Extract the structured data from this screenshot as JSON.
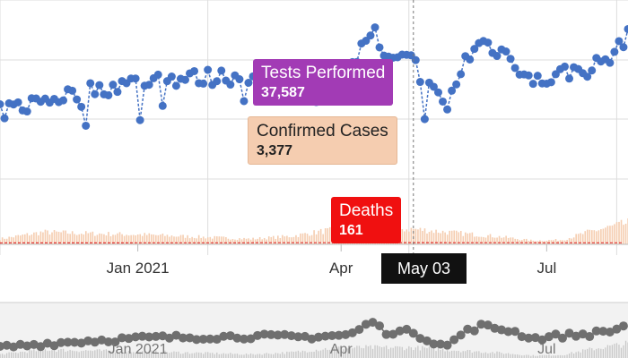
{
  "chart_data": {
    "type": "bar",
    "series": [
      {
        "name": "Tests Performed",
        "color": "#4472c4",
        "render": "line-dots",
        "x_unit": "date",
        "anchors": [
          [
            "2020-11-01",
            27000
          ],
          [
            "2020-11-20",
            29500
          ],
          [
            "2020-12-10",
            31500
          ],
          [
            "2021-01-05",
            33500
          ],
          [
            "2021-01-25",
            34000
          ],
          [
            "2021-02-20",
            34500
          ],
          [
            "2021-03-15",
            34000
          ],
          [
            "2021-04-05",
            35500
          ],
          [
            "2021-04-15",
            44500
          ],
          [
            "2021-04-20",
            37500
          ],
          [
            "2021-05-03",
            37587
          ],
          [
            "2021-05-08",
            33000
          ],
          [
            "2021-05-18",
            28000
          ],
          [
            "2021-05-25",
            37000
          ],
          [
            "2021-06-02",
            41500
          ],
          [
            "2021-06-15",
            38500
          ],
          [
            "2021-06-25",
            33000
          ],
          [
            "2021-07-08",
            35000
          ],
          [
            "2021-07-20",
            36000
          ],
          [
            "2021-08-01",
            39000
          ],
          [
            "2021-08-06",
            44000
          ]
        ]
      },
      {
        "name": "Confirmed Cases",
        "color": "#f5cdb0",
        "render": "bars",
        "x_unit": "date",
        "anchors": [
          [
            "2020-11-01",
            1200
          ],
          [
            "2020-11-20",
            2700
          ],
          [
            "2020-12-10",
            2400
          ],
          [
            "2021-01-05",
            2100
          ],
          [
            "2021-01-25",
            1700
          ],
          [
            "2021-02-20",
            1200
          ],
          [
            "2021-03-10",
            1800
          ],
          [
            "2021-03-25",
            3000
          ],
          [
            "2021-04-10",
            3400
          ],
          [
            "2021-05-03",
            3377
          ],
          [
            "2021-05-20",
            2600
          ],
          [
            "2021-06-10",
            1700
          ],
          [
            "2021-06-25",
            800
          ],
          [
            "2021-07-08",
            1000
          ],
          [
            "2021-07-20",
            2800
          ],
          [
            "2021-08-06",
            4700
          ]
        ]
      },
      {
        "name": "Deaths",
        "color": "#e03030",
        "render": "line",
        "x_unit": "date",
        "anchors": [
          [
            "2020-11-01",
            100
          ],
          [
            "2021-05-03",
            161
          ],
          [
            "2021-08-06",
            120
          ]
        ]
      }
    ],
    "x_ticks": [
      "Jan 2021",
      "Apr",
      "Jul"
    ],
    "x_range": [
      "2020-11-01",
      "2021-08-06"
    ],
    "y_range": [
      0,
      50000
    ],
    "grid": true
  },
  "tooltips": {
    "tests": {
      "title": "Tests Performed",
      "value": "37,587"
    },
    "cases": {
      "title": "Confirmed Cases",
      "value": "3,377"
    },
    "deaths": {
      "title": "Deaths",
      "value": "161"
    },
    "date": "May 03"
  },
  "navigator": {
    "labels": [
      "Jan 2021",
      "Apr",
      "Jul"
    ]
  },
  "colors": {
    "grid": "#dddddd",
    "cursor": "#777777",
    "navigator_bar": "#c8c8c8",
    "navigator_dot": "#6f6f6f"
  }
}
